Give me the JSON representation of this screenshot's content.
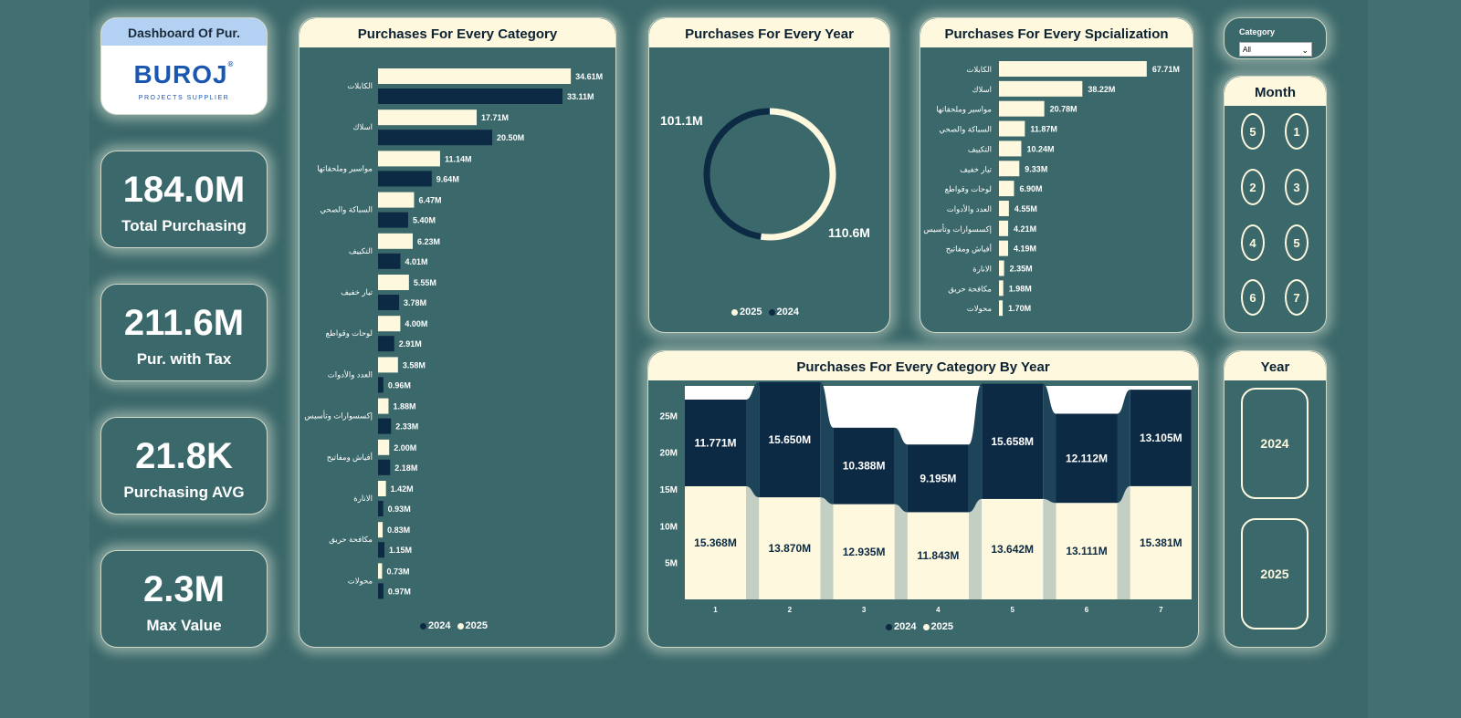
{
  "logo": {
    "title": "Dashboard Of Pur.",
    "brand": "BUROJ",
    "brand_mark": "®",
    "tagline": "PROJECTS SUPPLIER"
  },
  "kpis": [
    {
      "value": "184.0M",
      "label": "Total Purchasing"
    },
    {
      "value": "211.6M",
      "label": "Pur. with Tax"
    },
    {
      "value": "21.8K",
      "label": "Purchasing AVG"
    },
    {
      "value": "2.3M",
      "label": "Max Value"
    }
  ],
  "colors": {
    "s2024": "#0c2a43",
    "s2025": "#fdf8de",
    "panel": "#3b686a",
    "ribbon": "#c3cfc2"
  },
  "slicers": {
    "category": {
      "label": "Category",
      "value": "All"
    },
    "month": {
      "title": "Month",
      "options": [
        "5",
        "1",
        "2",
        "3",
        "4",
        "5",
        "6",
        "7"
      ]
    },
    "year": {
      "title": "Year",
      "options": [
        "2024",
        "2025"
      ]
    }
  },
  "chart_data": [
    {
      "type": "bar",
      "title": "Purchases For Every Category",
      "orientation": "horizontal",
      "categories": [
        "الكابلات",
        "اسلاك",
        "مواسير وملحقاتها",
        "السباكة والصحي",
        "التكييف",
        "تيار خفيف",
        "لوحات وقواطع",
        "العدد والأدوات",
        "إكسسوارات وتأسيس",
        "أفياش ومفاتيح",
        "الانارة",
        "مكافحة حريق",
        "محولات"
      ],
      "series": [
        {
          "name": "2025",
          "values": [
            34.61,
            17.71,
            11.14,
            6.47,
            6.23,
            5.55,
            4.0,
            3.58,
            1.88,
            2.0,
            1.42,
            0.83,
            0.73
          ],
          "labels": [
            "34.61M",
            "17.71M",
            "11.14M",
            "6.47M",
            "6.23M",
            "5.55M",
            "4.00M",
            "3.58M",
            "1.88M",
            "2.00M",
            "1.42M",
            "0.83M",
            "0.73M"
          ]
        },
        {
          "name": "2024",
          "values": [
            33.11,
            20.5,
            9.64,
            5.4,
            4.01,
            3.78,
            2.91,
            0.96,
            2.33,
            2.18,
            0.93,
            1.15,
            0.97
          ],
          "labels": [
            "33.11M",
            "20.50M",
            "9.64M",
            "5.40M",
            "4.01M",
            "3.78M",
            "2.91M",
            "0.96M",
            "2.33M",
            "2.18M",
            "0.93M",
            "1.15M",
            "0.97M"
          ]
        }
      ],
      "legend": [
        "2024",
        "2025"
      ]
    },
    {
      "type": "pie",
      "title": "Purchases For Every Year",
      "style": "donut",
      "slices": [
        {
          "name": "2025",
          "value": 110.6,
          "label": "110.6M"
        },
        {
          "name": "2024",
          "value": 101.1,
          "label": "101.1M"
        }
      ],
      "legend": [
        "2025",
        "2024"
      ]
    },
    {
      "type": "bar",
      "title": "Purchases For Every Spcialization",
      "orientation": "horizontal",
      "categories": [
        "الكابلات",
        "اسلاك",
        "مواسير وملحقاتها",
        "السباكة والصحي",
        "التكييف",
        "تيار خفيف",
        "لوحات وقواطع",
        "العدد والأدوات",
        "إكسسوارات وتأسيس",
        "أفياش ومفاتيح",
        "الانارة",
        "مكافحة حريق",
        "محولات"
      ],
      "values": [
        67.71,
        38.22,
        20.78,
        11.87,
        10.24,
        9.33,
        6.9,
        4.55,
        4.21,
        4.19,
        2.35,
        1.98,
        1.7
      ],
      "labels": [
        "67.71M",
        "38.22M",
        "20.78M",
        "11.87M",
        "10.24M",
        "9.33M",
        "6.90M",
        "4.55M",
        "4.21M",
        "4.19M",
        "2.35M",
        "1.98M",
        "1.70M"
      ]
    },
    {
      "type": "bar",
      "title": "Purchases For Every Category By Year",
      "stacked": true,
      "style": "ribbon",
      "categories": [
        "1",
        "2",
        "3",
        "4",
        "5",
        "6",
        "7"
      ],
      "series": [
        {
          "name": "2025",
          "values": [
            15.368,
            13.87,
            12.935,
            11.843,
            13.642,
            13.111,
            15.381
          ],
          "labels": [
            "15.368M",
            "13.870M",
            "12.935M",
            "11.843M",
            "13.642M",
            "13.111M",
            "15.381M"
          ]
        },
        {
          "name": "2024",
          "values": [
            11.771,
            15.65,
            10.388,
            9.195,
            15.658,
            12.112,
            13.105
          ],
          "labels": [
            "11.771M",
            "15.650M",
            "10.388M",
            "9.195M",
            "15.658M",
            "12.112M",
            "13.105M"
          ]
        }
      ],
      "yticks": [
        "5M",
        "10M",
        "15M",
        "20M",
        "25M"
      ],
      "ylim": [
        0,
        29
      ],
      "legend": [
        "2024",
        "2025"
      ]
    }
  ]
}
